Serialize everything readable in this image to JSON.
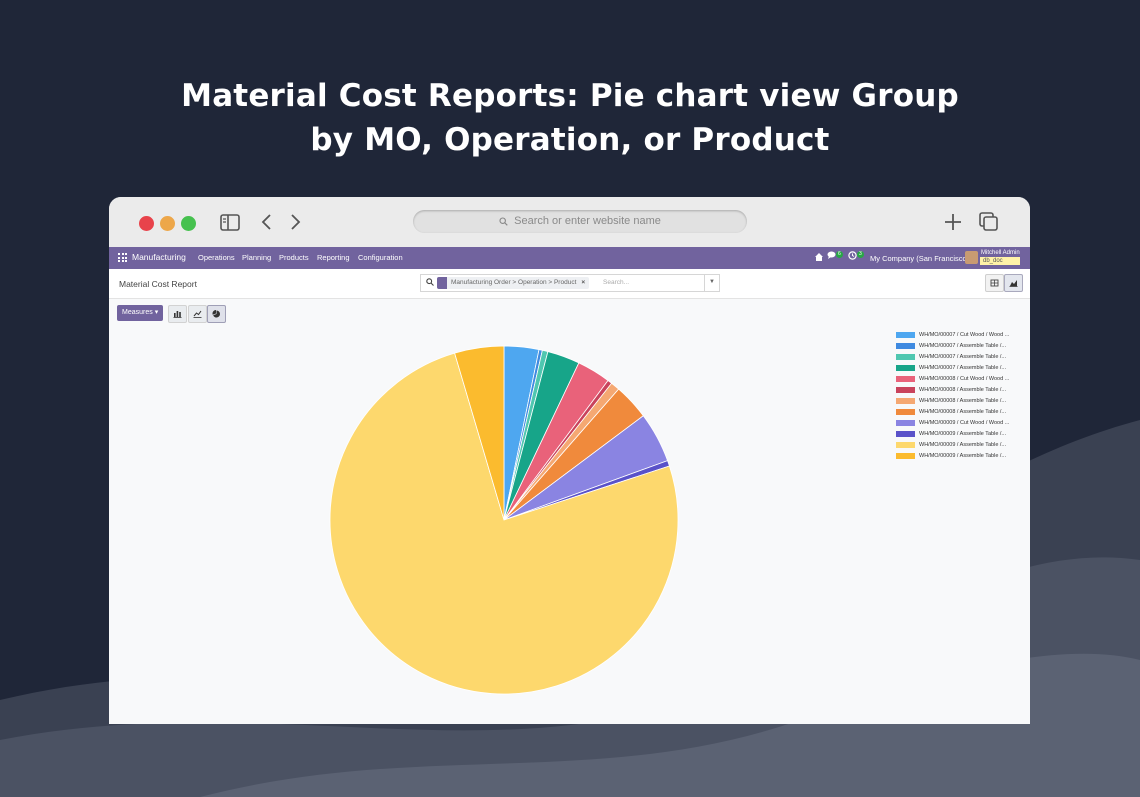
{
  "headline": {
    "line1": "Material Cost Reports: Pie chart view Group",
    "line2": "by MO, Operation, or Product"
  },
  "browser": {
    "url_placeholder": "Search or enter website name"
  },
  "odoo": {
    "app_name": "Manufacturing",
    "menu": [
      "Operations",
      "Planning",
      "Products",
      "Reporting",
      "Configuration"
    ],
    "messages_count": "6",
    "activities_count": "3",
    "company": "My Company (San Francisco)",
    "user": "Mitchell Admin",
    "database": "db_doc"
  },
  "control_panel": {
    "breadcrumb": "Material Cost Report",
    "facet": "Manufacturing Order > Operation > Product",
    "search_placeholder": "Search..."
  },
  "toolbar": {
    "measures_label": "Measures"
  },
  "chart_data": {
    "type": "pie",
    "labels": [
      "WH/MO/00007 / Cut Wood / Wood ...",
      "WH/MO/00007 / Assemble Table /...",
      "WH/MO/00007 / Assemble Table /...",
      "WH/MO/00007 / Assemble Table /...",
      "WH/MO/00008 / Cut Wood / Wood ...",
      "WH/MO/00008 / Assemble Table /...",
      "WH/MO/00008 / Assemble Table /...",
      "WH/MO/00008 / Assemble Table /...",
      "WH/MO/00009 / Cut Wood / Wood ...",
      "WH/MO/00009 / Assemble Table /...",
      "WH/MO/00009 / Assemble Table /...",
      "WH/MO/00009 / Assemble Table /..."
    ],
    "values": [
      3.1,
      0.3,
      0.5,
      2.9,
      3.0,
      0.4,
      0.8,
      3.2,
      4.5,
      0.5,
      72.5,
      4.4
    ],
    "colors": [
      "#4ea7f0",
      "#3f8ae0",
      "#4fc7b0",
      "#17a589",
      "#e9627a",
      "#c9435c",
      "#f5a872",
      "#f08a3c",
      "#8a84e2",
      "#5a52c9",
      "#fdd86d",
      "#fbbb2e"
    ],
    "legend_position": "top-right"
  }
}
